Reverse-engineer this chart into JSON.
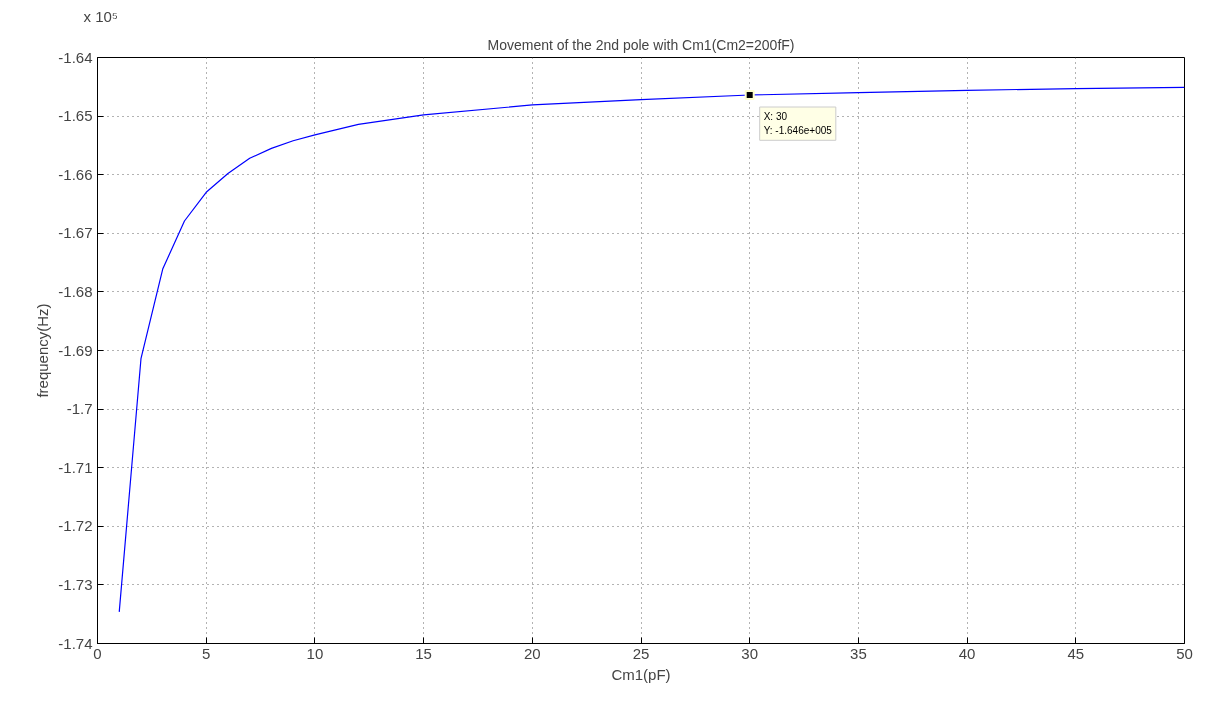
{
  "chart_data": {
    "type": "line",
    "title": "Movement of the 2nd pole with Cm1(Cm2=200fF)",
    "xlabel": "Cm1(pF)",
    "ylabel": "frequency(Hz)",
    "x": [
      1,
      2,
      3,
      4,
      5,
      6,
      7,
      8,
      9,
      10,
      12,
      15,
      20,
      25,
      30,
      35,
      40,
      45,
      50
    ],
    "series": [
      {
        "color": "#0000ff",
        "values": [
          -1.7346,
          -1.6914,
          -1.6761,
          -1.6679,
          -1.663,
          -1.6598,
          -1.6572,
          -1.6555,
          -1.6542,
          -1.6532,
          -1.6514,
          -1.6498,
          -1.6481,
          -1.6472,
          -1.6464,
          -1.646,
          -1.6456,
          -1.6453,
          -1.6451
        ]
      }
    ],
    "xlim": [
      0,
      50
    ],
    "xticks": [
      0,
      5,
      10,
      15,
      20,
      25,
      30,
      35,
      40,
      45,
      50
    ],
    "ylim": [
      -1.74,
      -1.64
    ],
    "yticks": [
      -1.74,
      -1.73,
      -1.72,
      -1.71,
      -1.7,
      -1.69,
      -1.68,
      -1.67,
      -1.66,
      -1.65,
      -1.64
    ],
    "grid": true,
    "marker": "none",
    "line_style": "solid",
    "annotations": [
      "x 10⁵",
      {
        "text": "X: 30\nY: -1.646e+005",
        "x": 30,
        "y": -1.6464
      }
    ]
  }
}
